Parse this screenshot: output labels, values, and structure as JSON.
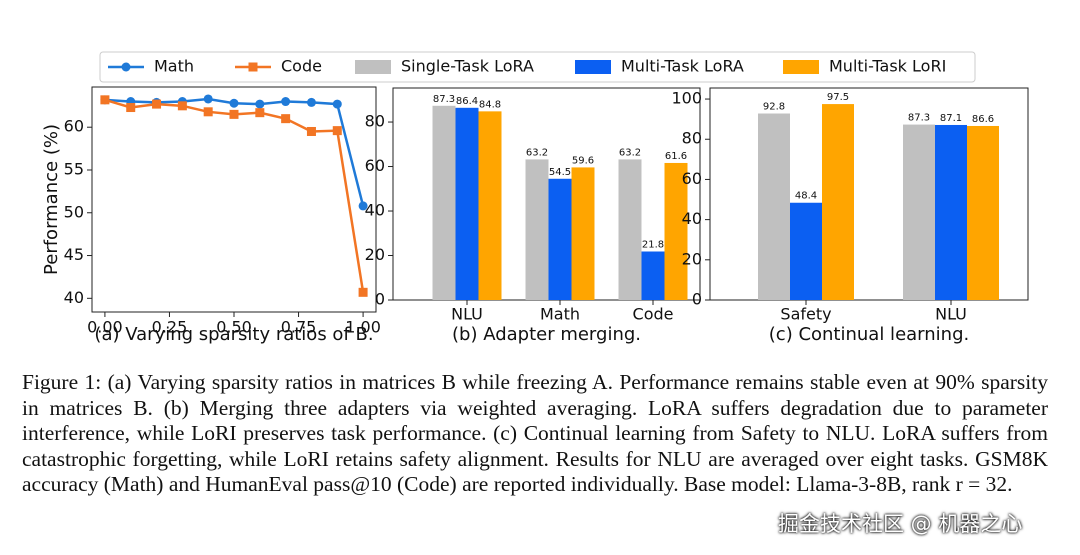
{
  "chart_data": [
    {
      "type": "line",
      "xlabel": "(a) Varying sparsity ratios of B.",
      "ylabel": "Performance (%)",
      "x": [
        0.0,
        0.1,
        0.2,
        0.3,
        0.4,
        0.5,
        0.6,
        0.7,
        0.8,
        0.9,
        1.0
      ],
      "xlim": [
        -0.05,
        1.05
      ],
      "xticks": [
        {
          "value": 0,
          "label": "0.00"
        },
        0.25,
        {
          "value": 0.5,
          "label": "0.50"
        },
        0.75,
        {
          "value": 1,
          "label": "1.00"
        }
      ],
      "ylim": [
        38.4,
        64.7
      ],
      "yticks": [
        40,
        45,
        50,
        55,
        60
      ],
      "grid": false,
      "series": [
        {
          "name": "Math",
          "color": "#1f7ad8",
          "marker": "circle",
          "values": [
            63.2,
            63.0,
            62.9,
            63.0,
            63.3,
            62.8,
            62.7,
            63.0,
            62.9,
            62.7,
            50.8
          ]
        },
        {
          "name": "Code",
          "color": "#f27524",
          "marker": "square",
          "values": [
            63.2,
            62.3,
            62.7,
            62.5,
            61.8,
            61.5,
            61.7,
            61.0,
            59.5,
            59.6,
            40.7
          ]
        }
      ]
    },
    {
      "type": "bar",
      "xlabel": "(b) Adapter merging.",
      "categories": [
        "NLU",
        "Math",
        "Code"
      ],
      "ylim": [
        0,
        95.3
      ],
      "yticks": [
        0,
        20,
        40,
        60,
        80
      ],
      "grid": false,
      "series": [
        {
          "name": "Single-Task LoRA",
          "color": "#c0c0c0",
          "values": [
            87.3,
            63.2,
            63.2
          ]
        },
        {
          "name": "Multi-Task LoRA",
          "color": "#0b5ff2",
          "values": [
            86.4,
            54.5,
            21.8
          ]
        },
        {
          "name": "Multi-Task LoRI",
          "color": "#ffa500",
          "values": [
            84.8,
            59.6,
            61.6
          ]
        }
      ]
    },
    {
      "type": "bar",
      "xlabel": "(c) Continual learning.",
      "categories": [
        "Safety",
        "NLU"
      ],
      "ylim": [
        0,
        105.5
      ],
      "yticks": [
        0,
        20,
        40,
        60,
        80,
        100
      ],
      "grid": false,
      "series": [
        {
          "color": "#c0c0c0",
          "values": [
            92.8,
            87.3
          ]
        },
        {
          "color": "#0b5ff2",
          "values": [
            48.4,
            87.1
          ]
        },
        {
          "color": "#ffa500",
          "values": [
            97.5,
            86.6
          ]
        }
      ]
    }
  ],
  "caption": "Figure 1: (a) Varying sparsity ratios in matrices B while freezing A. Performance remains stable even at 90% sparsity in matrices B. (b) Merging three adapters via weighted averaging. LoRA suffers degradation due to parameter interference, while LoRI preserves task performance. (c) Continual learning from Safety to NLU. LoRA suffers from catastrophic forgetting, while LoRI retains safety alignment. Results for NLU are averaged over eight tasks. GSM8K accuracy (Math) and HumanEval pass@10 (Code) are reported individually. Base model: Llama-3-8B, rank r = 32.",
  "watermark": "掘金技术社区 @ 机器之心"
}
